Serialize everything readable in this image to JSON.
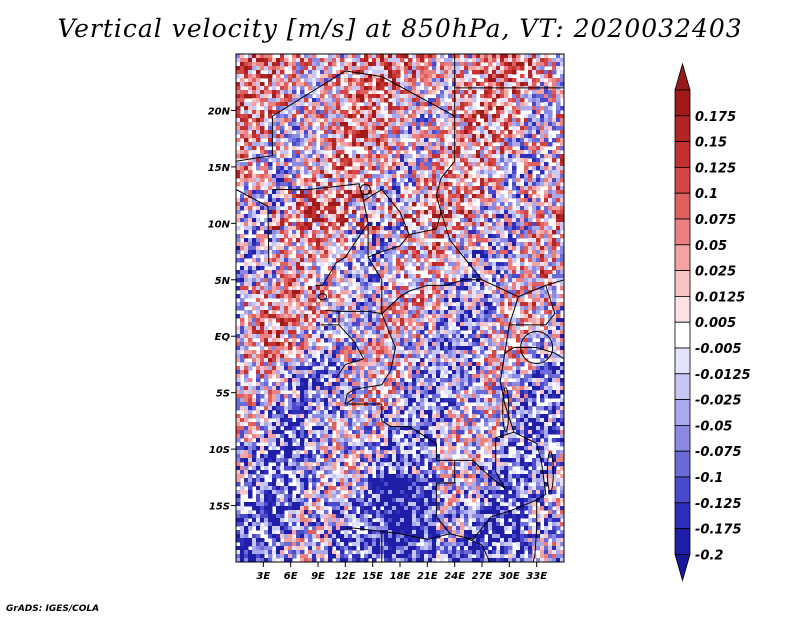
{
  "title": "Vertical velocity [m/s] at 850hPa, VT: 2020032403",
  "credit": "GrADS: IGES/COLA",
  "map": {
    "lon_range": [
      0,
      36
    ],
    "lat_range": [
      -20,
      25
    ],
    "lat_ticks": [
      {
        "value": 20,
        "label": "20N"
      },
      {
        "value": 15,
        "label": "15N"
      },
      {
        "value": 10,
        "label": "10N"
      },
      {
        "value": 5,
        "label": "5N"
      },
      {
        "value": 0,
        "label": "EQ"
      },
      {
        "value": -5,
        "label": "5S"
      },
      {
        "value": -10,
        "label": "10S"
      },
      {
        "value": -15,
        "label": "15S"
      }
    ],
    "lon_ticks": [
      {
        "value": 3,
        "label": "3E"
      },
      {
        "value": 6,
        "label": "6E"
      },
      {
        "value": 9,
        "label": "9E"
      },
      {
        "value": 12,
        "label": "12E"
      },
      {
        "value": 15,
        "label": "15E"
      },
      {
        "value": 18,
        "label": "18E"
      },
      {
        "value": 21,
        "label": "21E"
      },
      {
        "value": 24,
        "label": "24E"
      },
      {
        "value": 27,
        "label": "27E"
      },
      {
        "value": 30,
        "label": "30E"
      },
      {
        "value": 33,
        "label": "33E"
      }
    ],
    "field": "Vertical velocity",
    "units": "m/s",
    "level": "850hPa",
    "valid_time": "2020032403"
  },
  "colorbar": {
    "levels": [
      {
        "label": "0.175",
        "color": "#a01a1a"
      },
      {
        "label": "0.15",
        "color": "#b32424"
      },
      {
        "label": "0.125",
        "color": "#c53030"
      },
      {
        "label": "0.1",
        "color": "#d44545"
      },
      {
        "label": "0.075",
        "color": "#e06060"
      },
      {
        "label": "0.05",
        "color": "#ea8080"
      },
      {
        "label": "0.025",
        "color": "#f2a3a3"
      },
      {
        "label": "0.0125",
        "color": "#f8c4c4"
      },
      {
        "label": "0.005",
        "color": "#fce2e2"
      },
      {
        "label": "-0.005",
        "color": "#ffffff"
      },
      {
        "label": "-0.0125",
        "color": "#e3e3fb"
      },
      {
        "label": "-0.025",
        "color": "#c7c7f4"
      },
      {
        "label": "-0.05",
        "color": "#a9a9ec"
      },
      {
        "label": "-0.075",
        "color": "#8a8ae2"
      },
      {
        "label": "-0.1",
        "color": "#6a6ad8"
      },
      {
        "label": "-0.125",
        "color": "#4a4acc"
      },
      {
        "label": "-0.175",
        "color": "#2e2ebb"
      },
      {
        "label": "-0.2",
        "color": "#1e1ea6"
      }
    ],
    "top_arrow_color": "#961a1a",
    "bottom_arrow_color": "#17179a"
  }
}
